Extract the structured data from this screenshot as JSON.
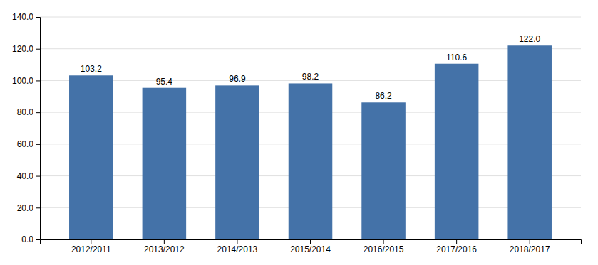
{
  "chart_data": {
    "type": "bar",
    "categories": [
      "2012/2011",
      "2013/2012",
      "2014/2013",
      "2015/2014",
      "2016/2015",
      "2017/2016",
      "2018/2017"
    ],
    "values": [
      103.2,
      95.4,
      96.9,
      98.2,
      86.2,
      110.6,
      122.0
    ],
    "value_labels": [
      "103.2",
      "95.4",
      "96.9",
      "98.2",
      "86.2",
      "110.6",
      "122.0"
    ],
    "data_labels": true,
    "color": "#4472a8",
    "ylim": [
      0,
      140
    ],
    "yticks": [
      {
        "value": 0.0,
        "label": "0.0"
      },
      {
        "value": 20.0,
        "label": "20.0"
      },
      {
        "value": 40.0,
        "label": "40.0"
      },
      {
        "value": 60.0,
        "label": "60.0"
      },
      {
        "value": 80.0,
        "label": "80.0"
      },
      {
        "value": 100.0,
        "label": "100.0"
      },
      {
        "value": 120.0,
        "label": "120.0"
      },
      {
        "value": 140.0,
        "label": "140.0"
      }
    ],
    "grid": true
  }
}
